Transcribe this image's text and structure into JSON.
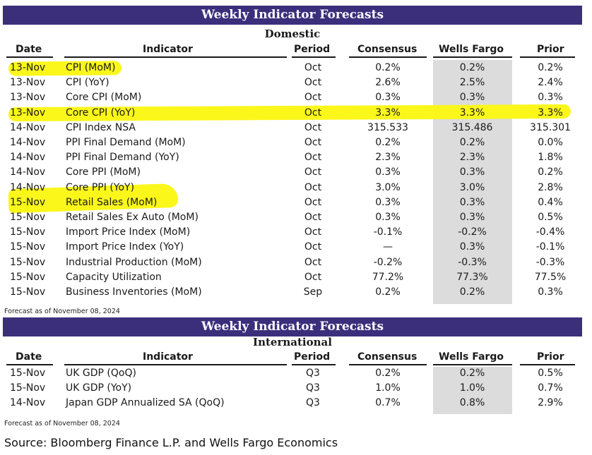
{
  "domestic": {
    "title": "Weekly Indicator Forecasts",
    "subtitle": "Domestic",
    "headers": [
      "Date",
      "Indicator",
      "Period",
      "Consensus",
      "Wells Fargo",
      "Prior"
    ],
    "rows": [
      {
        "date": "13-Nov",
        "indicator": "CPI (MoM)",
        "period": "Oct",
        "consensus": "0.2%",
        "wells_fargo": "0.2%",
        "prior": "0.2%"
      },
      {
        "date": "13-Nov",
        "indicator": "CPI (YoY)",
        "period": "Oct",
        "consensus": "2.6%",
        "wells_fargo": "2.5%",
        "prior": "2.4%"
      },
      {
        "date": "13-Nov",
        "indicator": "Core CPI (MoM)",
        "period": "Oct",
        "consensus": "0.3%",
        "wells_fargo": "0.3%",
        "prior": "0.3%"
      },
      {
        "date": "13-Nov",
        "indicator": "Core CPI (YoY)",
        "period": "Oct",
        "consensus": "3.3%",
        "wells_fargo": "3.3%",
        "prior": "3.3%"
      },
      {
        "date": "14-Nov",
        "indicator": "CPI Index NSA",
        "period": "Oct",
        "consensus": "315.533",
        "wells_fargo": "315.486",
        "prior": "315.301"
      },
      {
        "date": "14-Nov",
        "indicator": "PPI Final Demand (MoM)",
        "period": "Oct",
        "consensus": "0.2%",
        "wells_fargo": "0.2%",
        "prior": "0.0%"
      },
      {
        "date": "14-Nov",
        "indicator": "PPI Final Demand (YoY)",
        "period": "Oct",
        "consensus": "2.3%",
        "wells_fargo": "2.3%",
        "prior": "1.8%"
      },
      {
        "date": "14-Nov",
        "indicator": "Core PPI (MoM)",
        "period": "Oct",
        "consensus": "0.3%",
        "wells_fargo": "0.3%",
        "prior": "0.2%"
      },
      {
        "date": "14-Nov",
        "indicator": "Core PPI (YoY)",
        "period": "Oct",
        "consensus": "3.0%",
        "wells_fargo": "3.0%",
        "prior": "2.8%"
      },
      {
        "date": "15-Nov",
        "indicator": "Retail Sales (MoM)",
        "period": "Oct",
        "consensus": "0.3%",
        "wells_fargo": "0.3%",
        "prior": "0.4%"
      },
      {
        "date": "15-Nov",
        "indicator": "Retail Sales Ex Auto (MoM)",
        "period": "Oct",
        "consensus": "0.3%",
        "wells_fargo": "0.3%",
        "prior": "0.5%"
      },
      {
        "date": "15-Nov",
        "indicator": "Import Price Index (MoM)",
        "period": "Oct",
        "consensus": "-0.1%",
        "wells_fargo": "-0.2%",
        "prior": "-0.4%"
      },
      {
        "date": "15-Nov",
        "indicator": "Import Price Index (YoY)",
        "period": "Oct",
        "consensus": "—",
        "wells_fargo": "0.3%",
        "prior": "-0.1%"
      },
      {
        "date": "15-Nov",
        "indicator": "Industrial Production (MoM)",
        "period": "Oct",
        "consensus": "-0.2%",
        "wells_fargo": "-0.3%",
        "prior": "-0.3%"
      },
      {
        "date": "15-Nov",
        "indicator": "Capacity Utilization",
        "period": "Oct",
        "consensus": "77.2%",
        "wells_fargo": "77.3%",
        "prior": "77.5%"
      },
      {
        "date": "15-Nov",
        "indicator": "Business Inventories (MoM)",
        "period": "Sep",
        "consensus": "0.2%",
        "wells_fargo": "0.2%",
        "prior": "0.3%"
      }
    ],
    "note": "Forecast as of November 08, 2024"
  },
  "international": {
    "title": "Weekly Indicator Forecasts",
    "subtitle": "International",
    "headers": [
      "Date",
      "Indicator",
      "Period",
      "Consensus",
      "Wells Fargo",
      "Prior"
    ],
    "rows": [
      {
        "date": "15-Nov",
        "indicator": "UK GDP (QoQ)",
        "period": "Q3",
        "consensus": "0.2%",
        "wells_fargo": "0.2%",
        "prior": "0.5%"
      },
      {
        "date": "15-Nov",
        "indicator": "UK GDP (YoY)",
        "period": "Q3",
        "consensus": "1.0%",
        "wells_fargo": "1.0%",
        "prior": "0.7%"
      },
      {
        "date": "14-Nov",
        "indicator": "Japan GDP Annualized SA (QoQ)",
        "period": "Q3",
        "consensus": "0.7%",
        "wells_fargo": "0.8%",
        "prior": "2.9%"
      }
    ],
    "note": "Forecast as of November 08, 2024"
  },
  "source": "Source: Bloomberg Finance L.P. and Wells Fargo Economics",
  "colors": {
    "banner": "#3b2f7c",
    "highlight": "#fbf71b",
    "wells_fargo_column": "#dcdcdc"
  }
}
